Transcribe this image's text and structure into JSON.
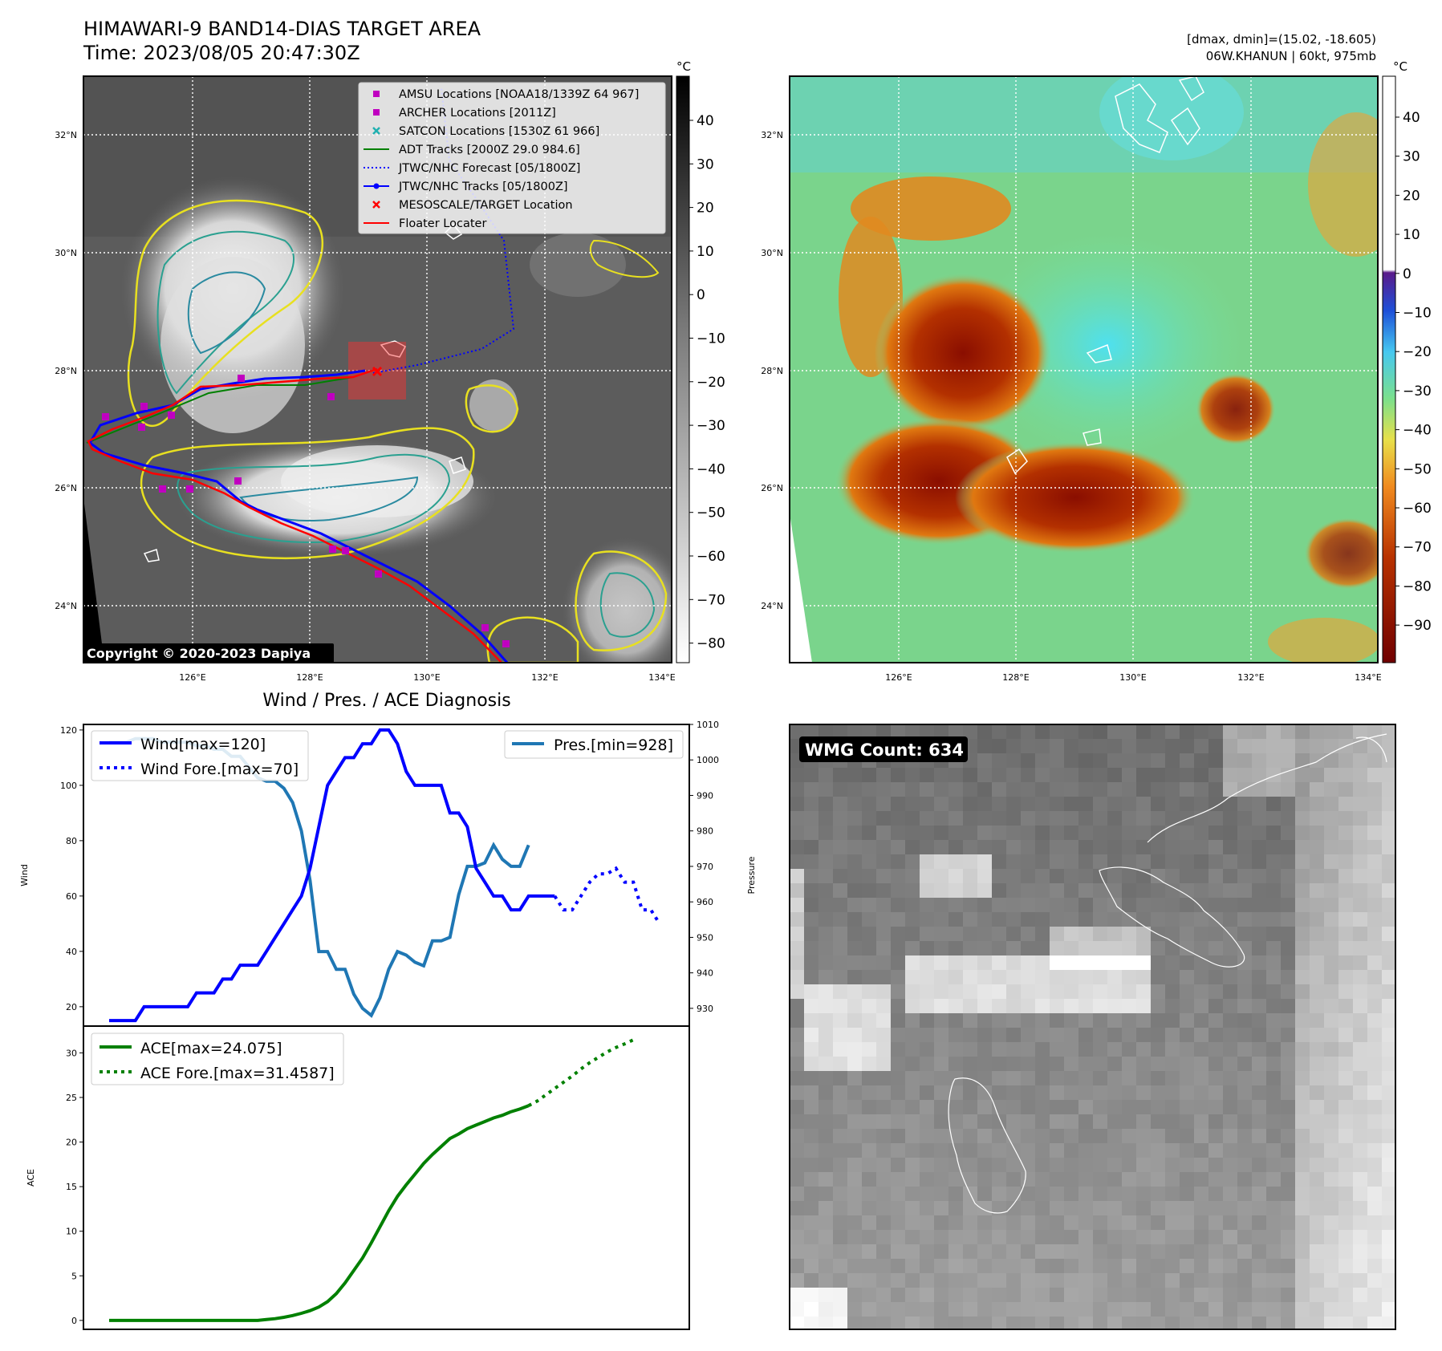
{
  "header": {
    "title": "HIMAWARI-9 BAND14-DIAS TARGET AREA",
    "time": "Time: 2023/08/05 20:47:30Z",
    "dmax_dmin": "[dmax, dmin]=(15.02, -18.605)",
    "storm_info": "06W.KHANUN | 60kt, 975mb"
  },
  "colorbar_unit": "°C",
  "copyright": "Copyright © 2020-2023 Dapiya",
  "wmg_count": "WMG Count: 634",
  "diagnosis_title": "Wind / Pres. / ACE Diagnosis",
  "map_axes": {
    "lat_labels": [
      "32°N",
      "30°N",
      "28°N",
      "26°N",
      "24°N"
    ],
    "lon_labels": [
      "126°E",
      "128°E",
      "130°E",
      "132°E",
      "134°E"
    ]
  },
  "colorbar_left_ticks": [
    "40",
    "30",
    "20",
    "10",
    "0",
    "−10",
    "−20",
    "−30",
    "−40",
    "−50",
    "−60",
    "−70",
    "−80"
  ],
  "colorbar_right_ticks": [
    "40",
    "30",
    "20",
    "10",
    "0",
    "−10",
    "−20",
    "−30",
    "−40",
    "−50",
    "−60",
    "−70",
    "−80",
    "−90"
  ],
  "legend_map": [
    {
      "label": "AMSU Locations [NOAA18/1339Z 64 967]",
      "color": "#c000c0",
      "marker": "square"
    },
    {
      "label": "ARCHER Locations [2011Z]",
      "color": "#c000c0",
      "marker": "square"
    },
    {
      "label": "SATCON Locations [1530Z 61 966]",
      "color": "#20b0b0",
      "marker": "x"
    },
    {
      "label": "ADT Tracks [2000Z 29.0 984.6]",
      "color": "#008000",
      "marker": "line"
    },
    {
      "label": "JTWC/NHC Forecast [05/1800Z]",
      "color": "#0000ff",
      "marker": "dotted"
    },
    {
      "label": "JTWC/NHC Tracks [05/1800Z]",
      "color": "#0000ff",
      "marker": "line-dot"
    },
    {
      "label": "MESOSCALE/TARGET Location",
      "color": "#ff0000",
      "marker": "x"
    },
    {
      "label": "Floater Locater",
      "color": "#ff0000",
      "marker": "line"
    }
  ],
  "chart_data": [
    {
      "type": "line",
      "panel": "wind-pressure",
      "ylabel": "Wind",
      "ylabel_right": "Pressure",
      "ylim": [
        13,
        122
      ],
      "ylim_right": [
        925,
        1010
      ],
      "yticks": [
        20,
        40,
        60,
        80,
        100,
        120
      ],
      "yticks_right": [
        930,
        940,
        950,
        960,
        970,
        980,
        990,
        1000,
        1010
      ],
      "legend_left": [
        "Wind[max=120]",
        "Wind Fore.[max=70]"
      ],
      "legend_right": [
        "Pres.[min=928]"
      ],
      "series": [
        {
          "name": "Wind[max=120]",
          "axis": "left",
          "color": "#0000ff",
          "style": "solid",
          "values": [
            15,
            15,
            15,
            15,
            20,
            20,
            20,
            20,
            20,
            20,
            25,
            25,
            25,
            30,
            30,
            35,
            35,
            35,
            40,
            45,
            50,
            55,
            60,
            70,
            85,
            100,
            105,
            110,
            110,
            115,
            115,
            120,
            120,
            115,
            105,
            100,
            100,
            100,
            100,
            90,
            90,
            85,
            70,
            65,
            60,
            60,
            55,
            55,
            60,
            60,
            60,
            60
          ]
        },
        {
          "name": "Wind Fore.[max=70]",
          "axis": "left",
          "color": "#0000ff",
          "style": "dotted",
          "values": [
            60,
            55,
            55,
            60,
            65,
            68,
            68,
            70,
            65,
            65,
            55,
            55,
            50
          ]
        },
        {
          "name": "Pres.[min=928]",
          "axis": "right",
          "color": "#1f77b4",
          "style": "solid",
          "values": [
            1005,
            1005,
            1005,
            1006,
            1006,
            1006,
            1005,
            1005,
            1005,
            1005,
            1004,
            1004,
            1003,
            1003,
            1001,
            1001,
            998,
            995,
            994,
            994,
            992,
            988,
            980,
            966,
            946,
            946,
            941,
            941,
            934,
            930,
            928,
            933,
            941,
            946,
            945,
            943,
            942,
            949,
            949,
            950,
            962,
            970,
            970,
            971,
            976,
            972,
            970,
            970,
            976
          ]
        }
      ]
    },
    {
      "type": "line",
      "panel": "ace",
      "ylabel": "ACE",
      "ylim": [
        -1,
        33
      ],
      "yticks": [
        0,
        5,
        10,
        15,
        20,
        25,
        30
      ],
      "legend": [
        "ACE[max=24.075]",
        "ACE Fore.[max=31.4587]"
      ],
      "series": [
        {
          "name": "ACE[max=24.075]",
          "color": "#008000",
          "style": "solid",
          "values": [
            0,
            0,
            0,
            0,
            0,
            0,
            0,
            0,
            0,
            0,
            0,
            0,
            0,
            0,
            0,
            0,
            0,
            0,
            0.1,
            0.2,
            0.35,
            0.55,
            0.8,
            1.1,
            1.5,
            2.1,
            3.0,
            4.2,
            5.6,
            7.0,
            8.7,
            10.5,
            12.3,
            13.9,
            15.2,
            16.4,
            17.6,
            18.6,
            19.5,
            20.4,
            20.9,
            21.5,
            21.9,
            22.3,
            22.7,
            23.0,
            23.4,
            23.7,
            24.075
          ]
        },
        {
          "name": "ACE Fore.[max=31.4587]",
          "color": "#008000",
          "style": "dotted",
          "values": [
            24.075,
            24.6,
            25.3,
            26.0,
            26.7,
            27.4,
            28.2,
            28.9,
            29.5,
            30.1,
            30.6,
            31.0,
            31.4587
          ]
        }
      ]
    }
  ]
}
